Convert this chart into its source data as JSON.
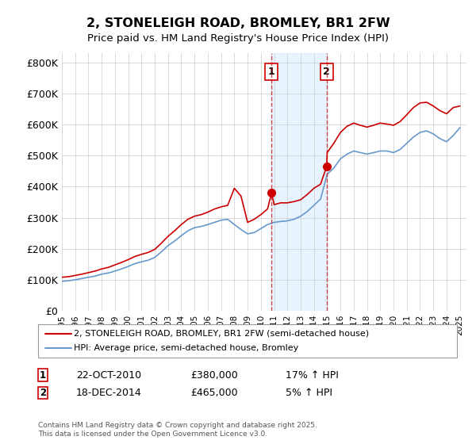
{
  "title": "2, STONELEIGH ROAD, BROMLEY, BR1 2FW",
  "subtitle": "Price paid vs. HM Land Registry's House Price Index (HPI)",
  "title_fontsize": 13,
  "subtitle_fontsize": 11,
  "ylabel_ticks": [
    "£0",
    "£100K",
    "£200K",
    "£300K",
    "£400K",
    "£500K",
    "£600K",
    "£700K",
    "£800K"
  ],
  "ytick_values": [
    0,
    100000,
    200000,
    300000,
    400000,
    500000,
    600000,
    700000,
    800000
  ],
  "ylim": [
    0,
    830000
  ],
  "xlim_start": 1995.0,
  "xlim_end": 2025.5,
  "legend1_label": "2, STONELEIGH ROAD, BROMLEY, BR1 2FW (semi-detached house)",
  "legend2_label": "HPI: Average price, semi-detached house, Bromley",
  "line1_color": "#cc0000",
  "line2_color": "#6699cc",
  "marker_color": "#cc0000",
  "sale1_x": 2010.81,
  "sale1_y": 380000,
  "sale1_label": "1",
  "sale2_x": 2014.96,
  "sale2_y": 465000,
  "sale2_label": "2",
  "vline1_x": 2010.81,
  "vline2_x": 2014.96,
  "shade_color": "#ddeeff",
  "annotation1_date": "22-OCT-2010",
  "annotation1_price": "£380,000",
  "annotation1_hpi": "17% ↑ HPI",
  "annotation2_date": "18-DEC-2014",
  "annotation2_price": "£465,000",
  "annotation2_hpi": "5% ↑ HPI",
  "footer_text": "Contains HM Land Registry data © Crown copyright and database right 2025.\nThis data is licensed under the Open Government Licence v3.0.",
  "background_color": "#ffffff",
  "grid_color": "#cccccc"
}
